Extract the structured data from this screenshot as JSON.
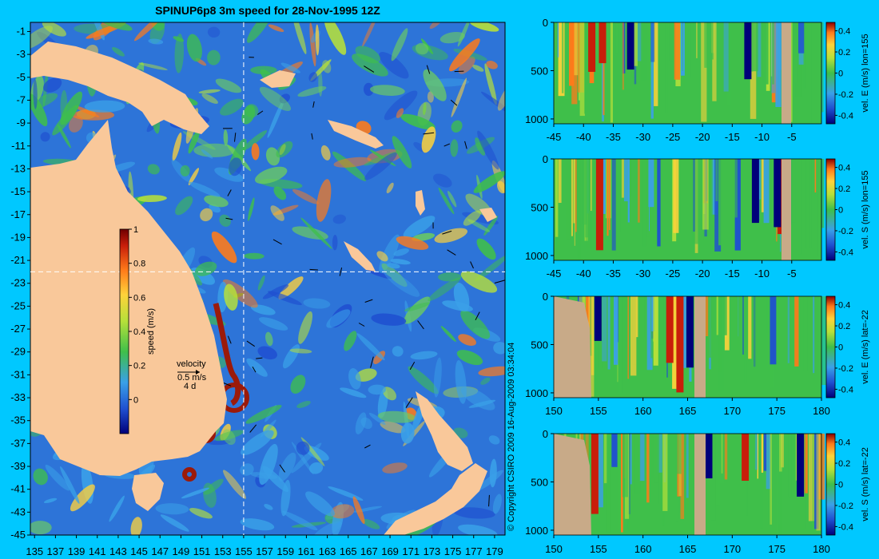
{
  "title": "SPINUP6p8 3m speed for 28-Nov-1995 12Z",
  "copyright": "© Copyright CSIRO 2009   16-Aug-2009 03:34:04",
  "colors": {
    "background": "#00c8ff",
    "land": "#f9c89a",
    "section_land": "#c8aa88",
    "ocean_low": "#2d74d8",
    "ocean_mid": "#3fbf4a",
    "ocean_high": "#e8e83a",
    "eddy": "#9b1a0a",
    "colormap": [
      "#00007a",
      "#1f4fd0",
      "#3aa0e8",
      "#3fbf4a",
      "#b6e03a",
      "#ffd23a",
      "#ff7a1a",
      "#c81e0a",
      "#6e0000"
    ]
  },
  "map": {
    "lon_ticks": [
      "135",
      "137",
      "139",
      "141",
      "143",
      "145",
      "147",
      "149",
      "151",
      "153",
      "155",
      "157",
      "159",
      "161",
      "163",
      "165",
      "167",
      "169",
      "171",
      "173",
      "175",
      "177",
      "179"
    ],
    "lat_ticks": [
      "-1",
      "-3",
      "-5",
      "-7",
      "-9",
      "-11",
      "-13",
      "-15",
      "-17",
      "-19",
      "-21",
      "-23",
      "-25",
      "-27",
      "-29",
      "-31",
      "-33",
      "-35",
      "-37",
      "-39",
      "-41",
      "-43",
      "-45"
    ],
    "colorbar": {
      "label": "speed (m/s)",
      "ticks": [
        "1",
        "0.8",
        "0.6",
        "0.4",
        "0.2",
        "0"
      ]
    },
    "velocity_key": {
      "title": "velocity",
      "speed": "0.5 m/s",
      "duration": "4 d"
    },
    "crosshair": {
      "lon": 155,
      "lat": -22
    }
  },
  "chart_data": [
    {
      "type": "heatmap",
      "id": "s1",
      "x_ticks": [
        "-45",
        "-40",
        "-35",
        "-30",
        "-25",
        "-20",
        "-15",
        "-10",
        "-5"
      ],
      "x_range": [
        -45,
        0
      ],
      "y_ticks": [
        "0",
        "500",
        "1000"
      ],
      "y_range": [
        0,
        1050
      ],
      "cbar_ticks": [
        "0.4",
        "0.2",
        "0",
        "-0.2",
        "-0.4"
      ],
      "cbar_label": "vel. E (m/s) lon=155"
    },
    {
      "type": "heatmap",
      "id": "s2",
      "x_ticks": [
        "-45",
        "-40",
        "-35",
        "-30",
        "-25",
        "-20",
        "-15",
        "-10",
        "-5"
      ],
      "x_range": [
        -45,
        0
      ],
      "y_ticks": [
        "0",
        "500",
        "1000"
      ],
      "y_range": [
        0,
        1050
      ],
      "cbar_ticks": [
        "0.4",
        "0.2",
        "0",
        "-0.2",
        "-0.4"
      ],
      "cbar_label": "vel. S (m/s) lon=155"
    },
    {
      "type": "heatmap",
      "id": "s3",
      "x_ticks": [
        "150",
        "155",
        "160",
        "165",
        "170",
        "175",
        "180"
      ],
      "x_range": [
        150,
        180
      ],
      "y_ticks": [
        "0",
        "500",
        "1000"
      ],
      "y_range": [
        0,
        1050
      ],
      "cbar_ticks": [
        "0.4",
        "0.2",
        "0",
        "-0.2",
        "-0.4"
      ],
      "cbar_label": "vel. E (m/s) lat=-22"
    },
    {
      "type": "heatmap",
      "id": "s4",
      "x_ticks": [
        "150",
        "155",
        "160",
        "165",
        "170",
        "175",
        "180"
      ],
      "x_range": [
        150,
        180
      ],
      "y_ticks": [
        "0",
        "500",
        "1000"
      ],
      "y_range": [
        0,
        1050
      ],
      "cbar_ticks": [
        "0.4",
        "0.2",
        "0",
        "-0.2",
        "-0.4"
      ],
      "cbar_label": "vel. S (m/s) lat=-22"
    }
  ]
}
